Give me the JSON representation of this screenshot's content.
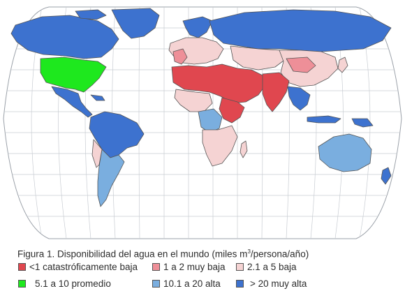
{
  "figure": {
    "caption_prefix": "Figura 1. Disponibilidad del agua en el mundo (miles m",
    "caption_superscript": "3",
    "caption_suffix": "/persona/año)"
  },
  "colors": {
    "background": "#ffffff",
    "ocean": "#ffffff",
    "graticule": "#c8ccd2",
    "catastrophic_low": "#e0474f",
    "very_low": "#ee8f98",
    "low": "#f5d3d3",
    "average": "#1ee81e",
    "high": "#7aaedf",
    "very_high": "#3d72cf"
  },
  "legend": [
    {
      "id": "catastrophic_low",
      "label": "<1 catastróficamente baja",
      "color": "#e0474f"
    },
    {
      "id": "very_low",
      "label": "1 a 2 muy baja",
      "color": "#ee8f98"
    },
    {
      "id": "low",
      "label": "2.1 a 5 baja",
      "color": "#f5d3d3"
    },
    {
      "id": "average",
      "label": "5.1 a 10 promedio",
      "color": "#1ee81e"
    },
    {
      "id": "high",
      "label": "10.1 a 20 alta",
      "color": "#7aaedf"
    },
    {
      "id": "very_high",
      "label": "> 20 muy alta",
      "color": "#3d72cf"
    }
  ]
}
